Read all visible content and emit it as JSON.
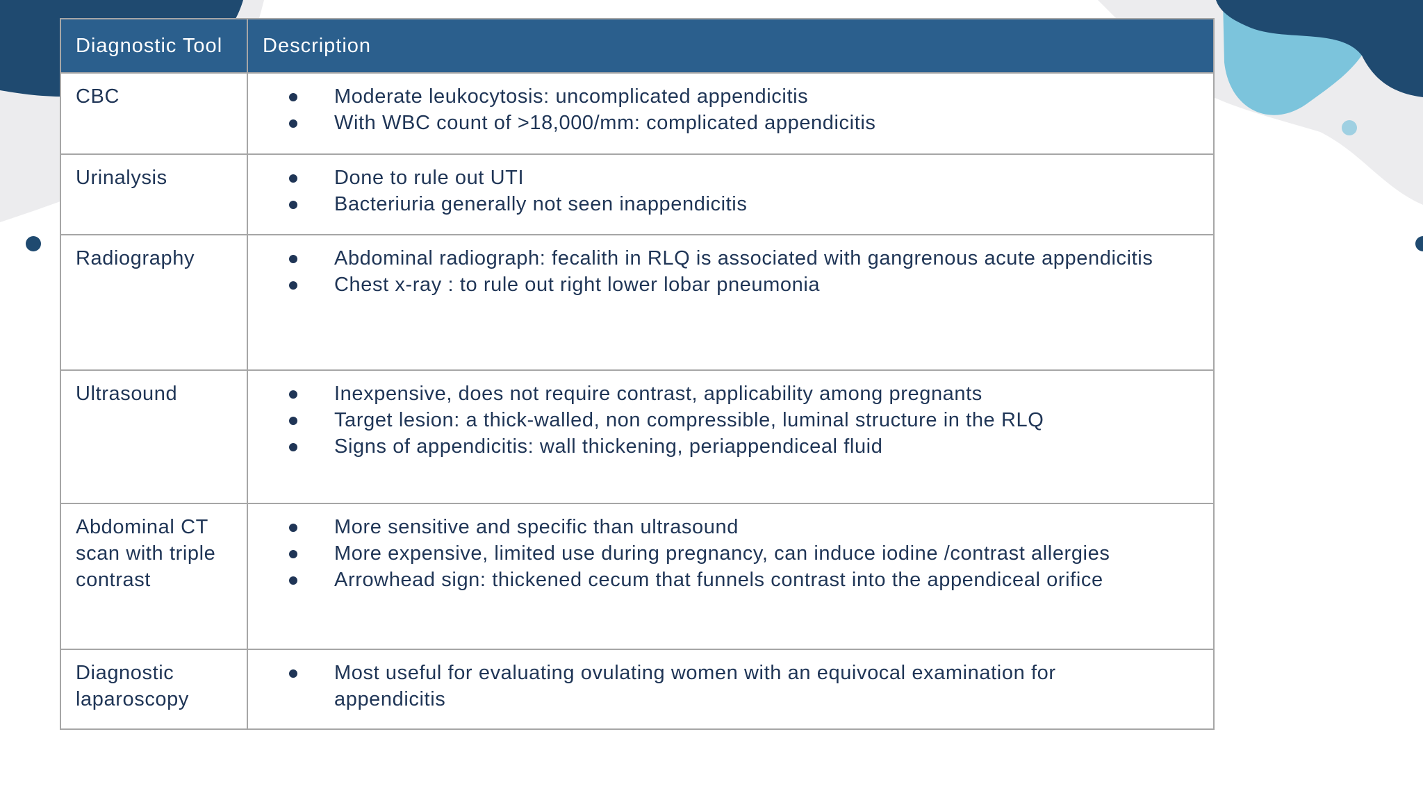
{
  "table": {
    "header": [
      "Diagnostic Tool",
      "Description"
    ],
    "rows": [
      {
        "tool": "CBC",
        "items": [
          "Moderate leukocytosis: uncomplicated appendicitis",
          "With WBC count of >18,000/mm: complicated appendicitis"
        ]
      },
      {
        "tool": "Urinalysis",
        "items": [
          "Done to rule out UTI",
          "Bacteriuria generally not seen inappendicitis"
        ]
      },
      {
        "tool": "Radiography",
        "items": [
          "Abdominal radiograph: fecalith in RLQ is associated with gangrenous acute appendicitis",
          "Chest x-ray : to rule out right lower lobar pneumonia"
        ]
      },
      {
        "tool": "Ultrasound",
        "items": [
          "Inexpensive, does not require contrast, applicability among pregnants",
          "Target lesion: a thick-walled, non compressible, luminal structure in the RLQ",
          "Signs of appendicitis: wall thickening, periappendiceal fluid"
        ]
      },
      {
        "tool": "Abdominal CT scan with triple contrast",
        "items": [
          "More sensitive and specific than ultrasound",
          "More expensive, limited use during pregnancy, can induce iodine /contrast allergies",
          "Arrowhead sign: thickened cecum that funnels contrast into the appendiceal orifice"
        ]
      },
      {
        "tool": "Diagnostic laparoscopy",
        "items": [
          "Most useful for evaluating ovulating women with an equivocal examination for appendicitis"
        ]
      }
    ]
  }
}
